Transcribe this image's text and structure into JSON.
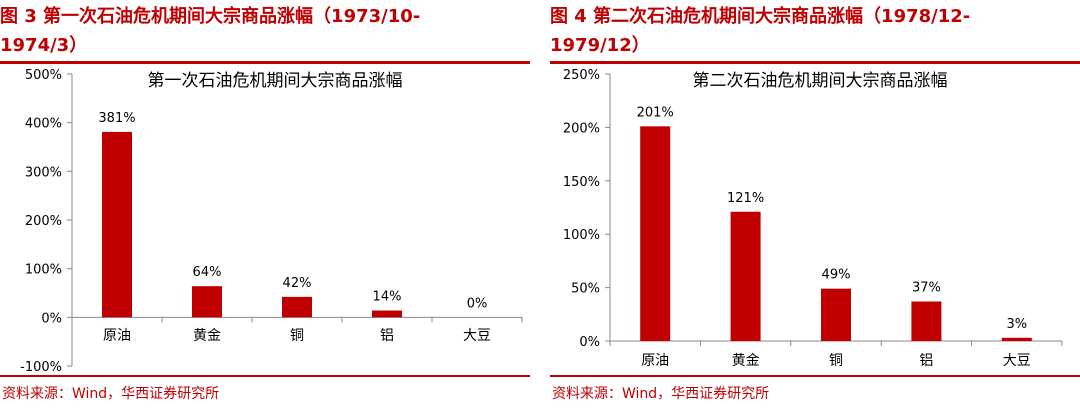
{
  "panels": [
    {
      "figure_title": "图 3  第一次石油危机期间大宗商品涨幅（1973/10-\n1974/3）",
      "source": "资料来源：Wind，华西证券研究所"
    },
    {
      "figure_title": "图 4  第二次石油危机期间大宗商品涨幅（1978/12-\n1979/12）",
      "source": "资料来源：Wind，华西证券研究所"
    }
  ],
  "colors": {
    "accent": "#c00000",
    "bar": "#c00000",
    "axis": "#888888",
    "text": "#000000"
  },
  "chart_data": [
    {
      "type": "bar",
      "title": "第一次石油危机期间大宗商品涨幅",
      "categories": [
        "原油",
        "黄金",
        "铜",
        "铝",
        "大豆"
      ],
      "values": [
        381,
        64,
        42,
        14,
        0
      ],
      "data_labels": [
        "381%",
        "64%",
        "42%",
        "14%",
        "0%"
      ],
      "ylim": [
        -100,
        500
      ],
      "yticks": [
        -100,
        0,
        100,
        200,
        300,
        400,
        500
      ],
      "ytick_labels": [
        "-100%",
        "0%",
        "100%",
        "200%",
        "300%",
        "400%",
        "500%"
      ],
      "xlabel": "",
      "ylabel": "",
      "grid": false
    },
    {
      "type": "bar",
      "title": "第二次石油危机期间大宗商品涨幅",
      "categories": [
        "原油",
        "黄金",
        "铜",
        "铝",
        "大豆"
      ],
      "values": [
        201,
        121,
        49,
        37,
        3
      ],
      "data_labels": [
        "201%",
        "121%",
        "49%",
        "37%",
        "3%"
      ],
      "ylim": [
        0,
        250
      ],
      "yticks": [
        0,
        50,
        100,
        150,
        200,
        250
      ],
      "ytick_labels": [
        "0%",
        "50%",
        "100%",
        "150%",
        "200%",
        "250%"
      ],
      "xlabel": "",
      "ylabel": "",
      "grid": false
    }
  ]
}
